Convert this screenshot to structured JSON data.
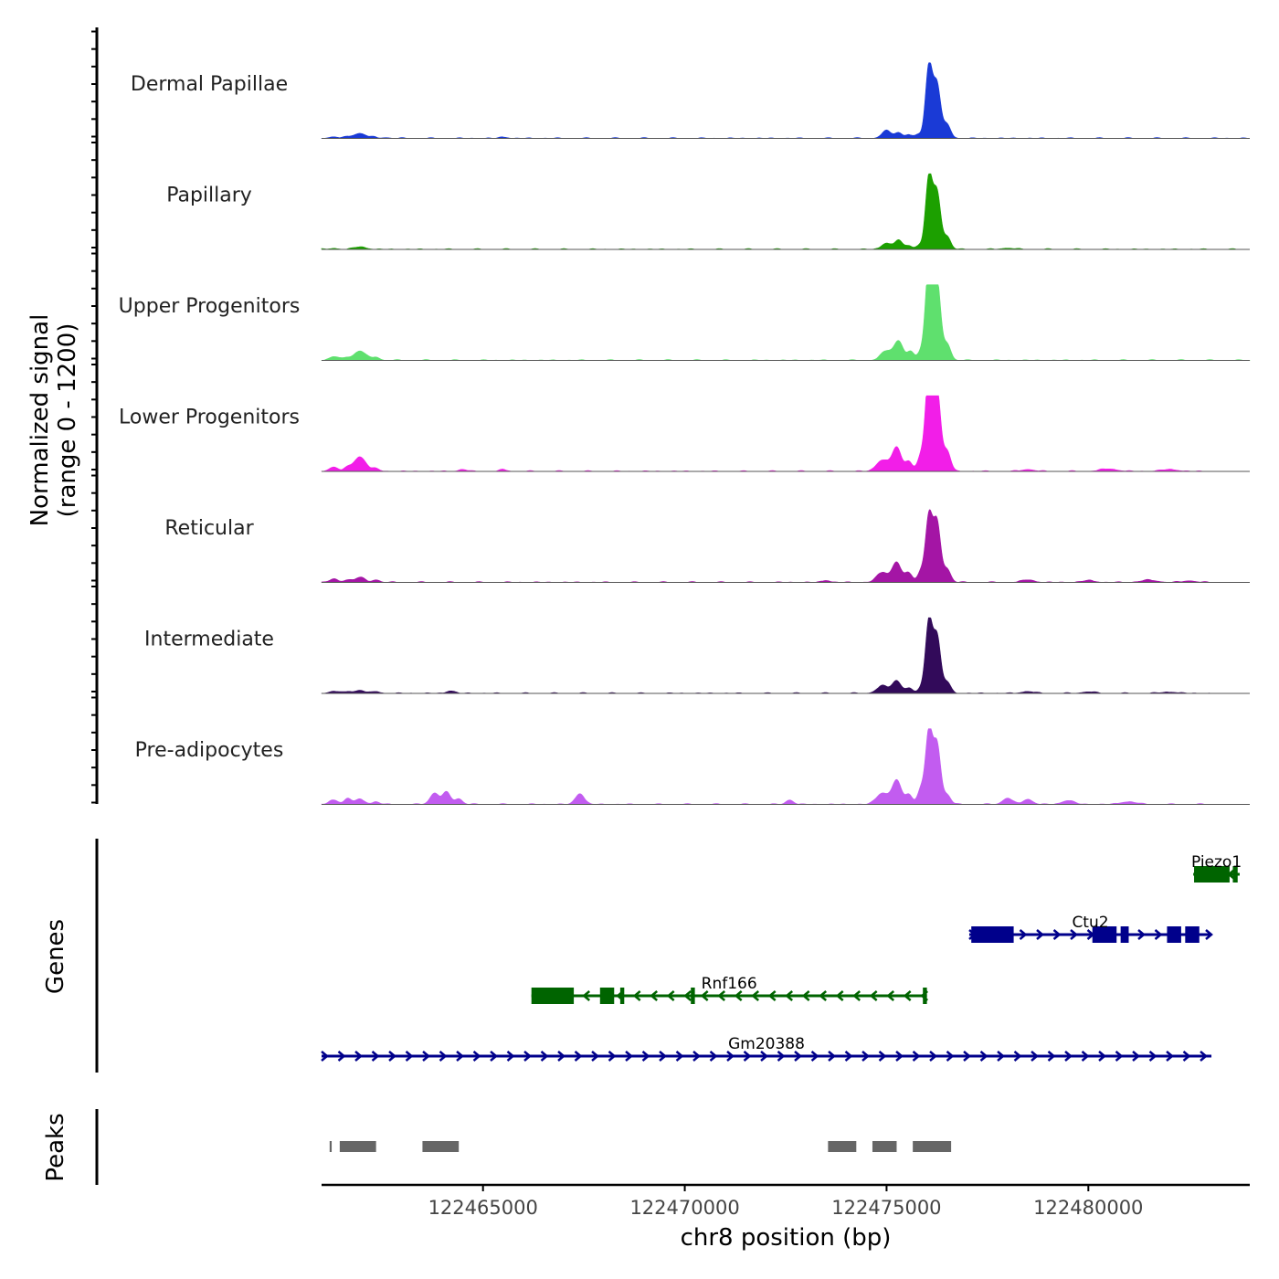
{
  "chart_data": {
    "type": "area",
    "title": "",
    "chromosome": "chr8",
    "xlabel": "chr8 position (bp)",
    "ylabel_line1": "Normalized signal",
    "ylabel_line2": "(range 0 - 1200)",
    "xlim": [
      122461000,
      122484000
    ],
    "ylim": [
      0,
      1200
    ],
    "x_ticks": [
      122465000,
      122470000,
      122475000,
      122480000
    ],
    "x_tick_labels": [
      "122465000",
      "122470000",
      "122475000",
      "122480000"
    ],
    "series": [
      {
        "name": "Dermal Papillae",
        "color": "#1a3ad6",
        "end": 122484000,
        "scale": 1.0,
        "peaks": [
          [
            122461300,
            25,
            110
          ],
          [
            122461650,
            20,
            90
          ],
          [
            122461950,
            80,
            150
          ],
          [
            122462300,
            15,
            90
          ],
          [
            122462600,
            12,
            90
          ],
          [
            122465500,
            20,
            100
          ],
          [
            122475000,
            120,
            120
          ],
          [
            122475300,
            90,
            90
          ],
          [
            122475550,
            60,
            80
          ],
          [
            122475800,
            60,
            80
          ],
          [
            122476050,
            1150,
            85
          ],
          [
            122476250,
            850,
            90
          ],
          [
            122476500,
            220,
            90
          ]
        ]
      },
      {
        "name": "Papillary",
        "color": "#1ca000",
        "end": 122484000,
        "scale": 1.0,
        "peaks": [
          [
            122461300,
            15,
            110
          ],
          [
            122461950,
            40,
            150
          ],
          [
            122475000,
            100,
            120
          ],
          [
            122475300,
            150,
            90
          ],
          [
            122475550,
            60,
            80
          ],
          [
            122475800,
            60,
            80
          ],
          [
            122476050,
            1150,
            85
          ],
          [
            122476250,
            900,
            90
          ],
          [
            122476500,
            200,
            90
          ],
          [
            122478000,
            20,
            150
          ]
        ]
      },
      {
        "name": "Upper Progenitors",
        "color": "#5fe06e",
        "end": 122484000,
        "scale": 1.0,
        "peaks": [
          [
            122461300,
            60,
            110
          ],
          [
            122461600,
            40,
            90
          ],
          [
            122461950,
            150,
            150
          ],
          [
            122462350,
            50,
            90
          ],
          [
            122475000,
            150,
            140
          ],
          [
            122475300,
            300,
            110
          ],
          [
            122475600,
            130,
            90
          ],
          [
            122475850,
            130,
            80
          ],
          [
            122476050,
            1550,
            85
          ],
          [
            122476250,
            1250,
            90
          ],
          [
            122476500,
            260,
            90
          ]
        ]
      },
      {
        "name": "Lower Progenitors",
        "color": "#f21ee8",
        "end": 122483000,
        "scale": 1.0,
        "peaks": [
          [
            122461300,
            70,
            110
          ],
          [
            122461650,
            50,
            90
          ],
          [
            122461950,
            230,
            150
          ],
          [
            122462350,
            40,
            90
          ],
          [
            122464500,
            30,
            100
          ],
          [
            122465500,
            25,
            100
          ],
          [
            122474900,
            180,
            150
          ],
          [
            122475250,
            380,
            110
          ],
          [
            122475550,
            160,
            90
          ],
          [
            122475850,
            240,
            80
          ],
          [
            122476050,
            1600,
            85
          ],
          [
            122476250,
            1300,
            90
          ],
          [
            122476500,
            320,
            90
          ],
          [
            122478500,
            30,
            150
          ],
          [
            122480500,
            40,
            200
          ],
          [
            122482000,
            30,
            200
          ]
        ]
      },
      {
        "name": "Reticular",
        "color": "#a415a5",
        "end": 122483000,
        "scale": 1.0,
        "peaks": [
          [
            122461300,
            50,
            110
          ],
          [
            122461650,
            40,
            90
          ],
          [
            122461950,
            80,
            120
          ],
          [
            122462350,
            40,
            90
          ],
          [
            122473500,
            30,
            100
          ],
          [
            122474900,
            160,
            140
          ],
          [
            122475250,
            320,
            110
          ],
          [
            122475550,
            150,
            90
          ],
          [
            122475850,
            170,
            80
          ],
          [
            122476050,
            1050,
            85
          ],
          [
            122476250,
            950,
            90
          ],
          [
            122476500,
            210,
            90
          ],
          [
            122478500,
            40,
            150
          ],
          [
            122480000,
            30,
            150
          ],
          [
            122481500,
            35,
            200
          ],
          [
            122482500,
            25,
            150
          ]
        ]
      },
      {
        "name": "Intermediate",
        "color": "#320a5a",
        "end": 122483000,
        "scale": 1.0,
        "peaks": [
          [
            122461300,
            35,
            110
          ],
          [
            122461650,
            30,
            90
          ],
          [
            122461950,
            50,
            120
          ],
          [
            122462350,
            30,
            90
          ],
          [
            122464200,
            40,
            100
          ],
          [
            122474900,
            120,
            140
          ],
          [
            122475250,
            200,
            110
          ],
          [
            122475550,
            80,
            90
          ],
          [
            122475850,
            80,
            80
          ],
          [
            122476050,
            1150,
            85
          ],
          [
            122476250,
            900,
            90
          ],
          [
            122476500,
            180,
            90
          ],
          [
            122478500,
            30,
            150
          ],
          [
            122480000,
            25,
            150
          ],
          [
            122482000,
            20,
            200
          ]
        ]
      },
      {
        "name": "Pre-adipocytes",
        "color": "#c25cf0",
        "end": 122483000,
        "scale": 1.0,
        "peaks": [
          [
            122461300,
            70,
            110
          ],
          [
            122461650,
            90,
            90
          ],
          [
            122461950,
            80,
            120
          ],
          [
            122462350,
            40,
            90
          ],
          [
            122463800,
            180,
            110
          ],
          [
            122464100,
            190,
            100
          ],
          [
            122464400,
            90,
            90
          ],
          [
            122467400,
            170,
            110
          ],
          [
            122472600,
            70,
            90
          ],
          [
            122474900,
            180,
            150
          ],
          [
            122475250,
            380,
            110
          ],
          [
            122475550,
            160,
            90
          ],
          [
            122475850,
            240,
            80
          ],
          [
            122476050,
            1150,
            85
          ],
          [
            122476250,
            950,
            90
          ],
          [
            122476500,
            150,
            90
          ],
          [
            122478000,
            100,
            120
          ],
          [
            122478500,
            80,
            120
          ],
          [
            122479500,
            60,
            150
          ],
          [
            122481000,
            40,
            200
          ]
        ]
      }
    ],
    "genes_track_label": "Genes",
    "genes": [
      {
        "name": "Piezo1",
        "strand": "-",
        "color": "#006400",
        "start": 122482600,
        "end": 122483750,
        "exons": [
          [
            122482620,
            122483500
          ],
          [
            122483580,
            122483700
          ]
        ]
      },
      {
        "name": "Ctu2",
        "strand": "+",
        "color": "#00008b",
        "start": 122477050,
        "end": 122483050,
        "exons": [
          [
            122477100,
            122478150
          ],
          [
            122480100,
            122480700
          ],
          [
            122480800,
            122481000
          ],
          [
            122481950,
            122482300
          ],
          [
            122482400,
            122482750
          ]
        ]
      },
      {
        "name": "Rnf166",
        "strand": "-",
        "color": "#006400",
        "start": 122466200,
        "end": 122476000,
        "exons": [
          [
            122466200,
            122467250
          ],
          [
            122467900,
            122468250
          ],
          [
            122468400,
            122468500
          ],
          [
            122470150,
            122470250
          ],
          [
            122475900,
            122476000
          ]
        ]
      },
      {
        "name": "Gm20388",
        "strand": "+",
        "color": "#00008b",
        "start": 122461000,
        "end": 122483050,
        "exons": []
      }
    ],
    "peaks_track_label": "Peaks",
    "peak_regions": [
      [
        122461200,
        122461250
      ],
      [
        122461450,
        122462350
      ],
      [
        122463500,
        122464400
      ],
      [
        122473550,
        122474250
      ],
      [
        122474650,
        122475250
      ],
      [
        122475650,
        122476600
      ]
    ]
  }
}
